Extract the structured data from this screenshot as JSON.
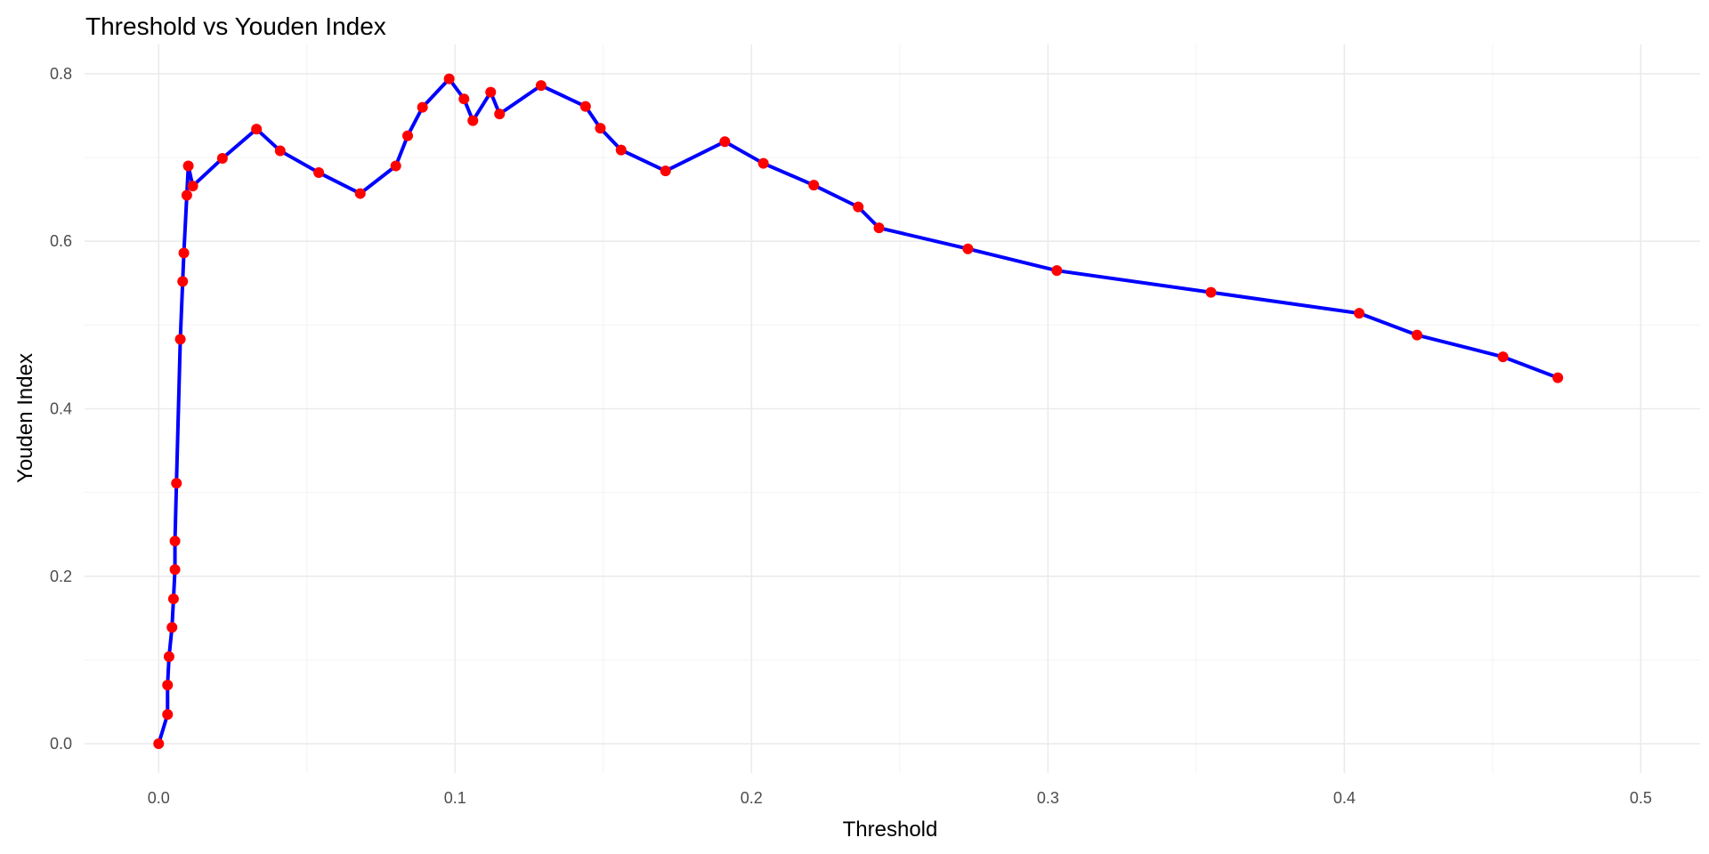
{
  "chart_data": {
    "type": "line",
    "title": "Threshold vs Youden Index",
    "xlabel": "Threshold",
    "ylabel": "Youden Index",
    "xlim": [
      -0.025,
      0.52
    ],
    "ylim": [
      -0.035,
      0.835
    ],
    "x_ticks": [
      0.0,
      0.1,
      0.2,
      0.3,
      0.4,
      0.5
    ],
    "x_tick_labels": [
      "0.0",
      "0.1",
      "0.2",
      "0.3",
      "0.4",
      "0.5"
    ],
    "y_ticks": [
      0.0,
      0.2,
      0.4,
      0.6,
      0.8
    ],
    "y_tick_labels": [
      "0.0",
      "0.2",
      "0.4",
      "0.6",
      "0.8"
    ],
    "grid": true,
    "legend": "none",
    "line_color": "#0000ff",
    "point_color": "#ff0000",
    "series": [
      {
        "x": [
          0.0,
          0.003,
          0.003,
          0.0035,
          0.0045,
          0.005,
          0.0055,
          0.0055,
          0.006,
          0.0073,
          0.0081,
          0.0085,
          0.0095,
          0.01,
          0.0115,
          0.0215,
          0.033,
          0.041,
          0.054,
          0.068,
          0.08,
          0.084,
          0.089,
          0.098,
          0.103,
          0.106,
          0.112,
          0.115,
          0.129,
          0.144,
          0.149,
          0.156,
          0.171,
          0.191,
          0.204,
          0.221,
          0.236,
          0.243,
          0.273,
          0.303,
          0.355,
          0.405,
          0.4245,
          0.4535,
          0.472
        ],
        "y": [
          0.0,
          0.035,
          0.07,
          0.104,
          0.139,
          0.173,
          0.208,
          0.242,
          0.311,
          0.483,
          0.552,
          0.586,
          0.655,
          0.69,
          0.666,
          0.699,
          0.734,
          0.708,
          0.682,
          0.657,
          0.69,
          0.726,
          0.76,
          0.794,
          0.77,
          0.744,
          0.778,
          0.752,
          0.786,
          0.761,
          0.735,
          0.709,
          0.684,
          0.719,
          0.693,
          0.667,
          0.641,
          0.616,
          0.591,
          0.565,
          0.539,
          0.514,
          0.488,
          0.462,
          0.437
        ]
      }
    ]
  }
}
